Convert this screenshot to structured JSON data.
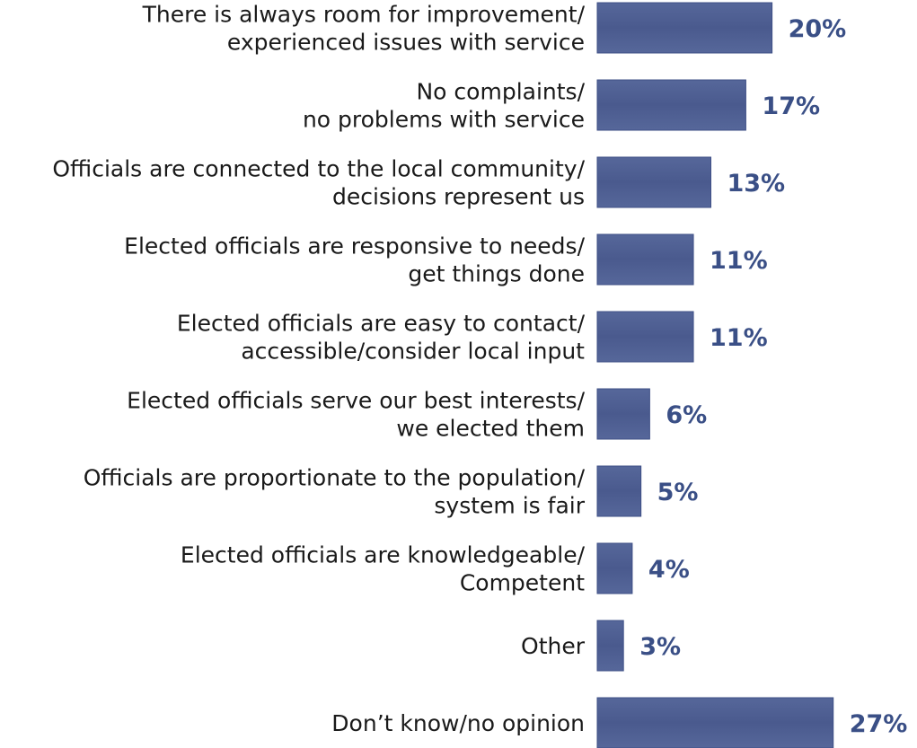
{
  "chart_data": {
    "type": "bar",
    "orientation": "horizontal",
    "title": "",
    "xlabel": "",
    "ylabel": "",
    "grid": false,
    "legend": "none",
    "bar_color": "#4a5a8e",
    "value_label_color": "#3a4f86",
    "categories": [
      [
        "There is always room for improvement/",
        "experienced issues with service"
      ],
      [
        "No complaints/",
        "no problems with service"
      ],
      [
        "Officials are connected to the local community/",
        "decisions represent us"
      ],
      [
        "Elected officials are responsive to needs/",
        "get things done"
      ],
      [
        "Elected officials are easy to contact/",
        "accessible/consider local input"
      ],
      [
        "Elected officials serve our best interests/",
        "we elected them"
      ],
      [
        "Officials are proportionate to the population/",
        "system is fair"
      ],
      [
        "Elected officials are knowledgeable/",
        "Competent"
      ],
      [
        "Other"
      ],
      [
        "Don’t know/no opinion"
      ]
    ],
    "values": [
      20,
      17,
      13,
      11,
      11,
      6,
      5,
      4,
      3,
      27
    ],
    "value_labels": [
      "20%",
      "17%",
      "13%",
      "11%",
      "11%",
      "6%",
      "5%",
      "4%",
      "3%",
      "27%"
    ],
    "xlim": [
      0,
      27
    ]
  }
}
